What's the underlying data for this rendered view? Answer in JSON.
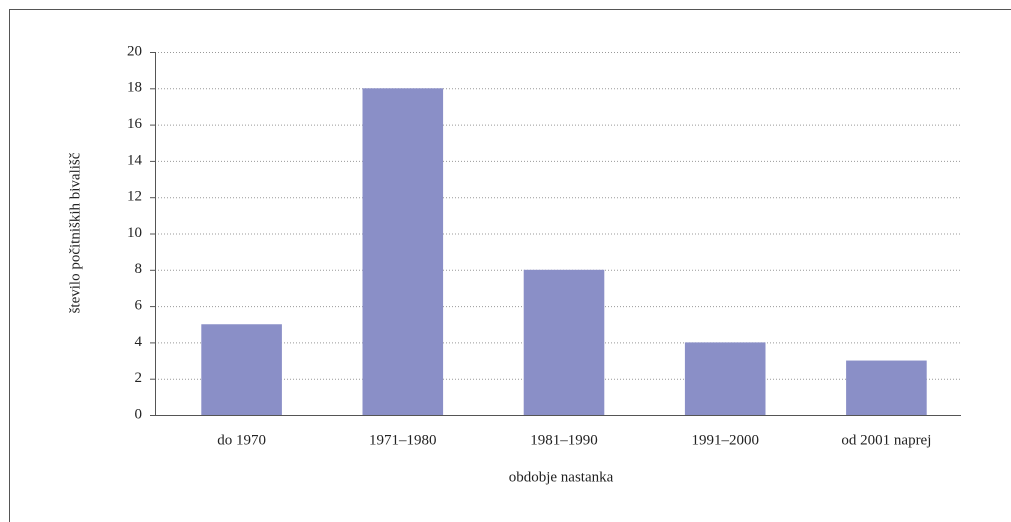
{
  "chart_data": {
    "type": "bar",
    "categories": [
      "do 1970",
      "1971–1980",
      "1981–1990",
      "1991–2000",
      "od 2001 naprej"
    ],
    "values": [
      5,
      18,
      8,
      4,
      3
    ],
    "color": "#8a8fc7",
    "xlabel": "obdobje nastanka",
    "ylabel": "število počitniških bivališč",
    "ylim": [
      0,
      20
    ],
    "yticks": [
      0,
      2,
      4,
      6,
      8,
      10,
      12,
      14,
      16,
      18,
      20
    ],
    "grid": true
  }
}
